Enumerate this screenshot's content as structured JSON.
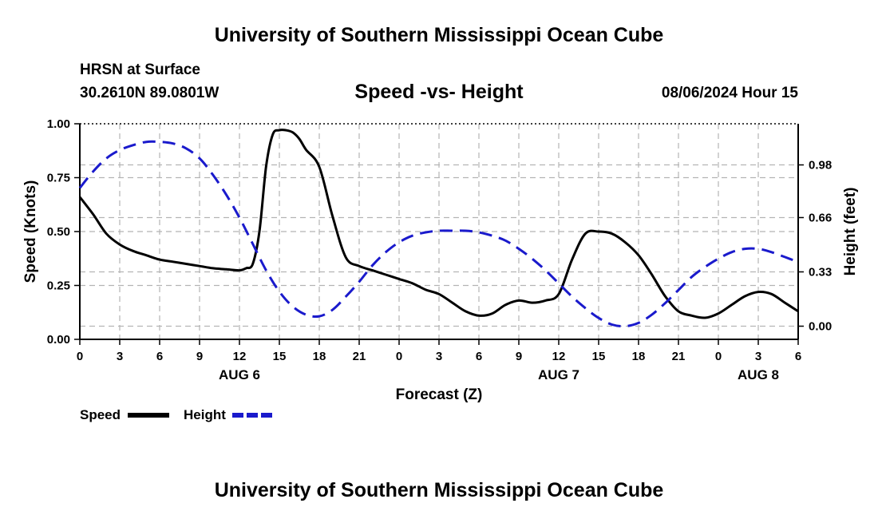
{
  "header": {
    "title": "University of Southern Mississippi Ocean Cube",
    "station": "HRSN at Surface",
    "coords": "30.2610N  89.0801W",
    "chart_title": "Speed -vs- Height",
    "timestamp": "08/06/2024 Hour 15"
  },
  "footer": {
    "title": "University of Southern Mississippi Ocean Cube"
  },
  "colors": {
    "speed": "#000000",
    "height": "#1a1acc",
    "grid": "#b4b4b4"
  },
  "chart_data": {
    "type": "line",
    "title": "Speed -vs- Height",
    "xlabel": "Forecast (Z)",
    "ylabel": "Speed (Knots)",
    "y2label": "Height (feet)",
    "x_unit": "forecast hours from 0Z Aug 6",
    "xlim": [
      0,
      54
    ],
    "ylim": [
      0,
      1.0
    ],
    "y2lim": [
      -0.08,
      1.23
    ],
    "x_ticks": [
      0,
      3,
      6,
      9,
      12,
      15,
      18,
      21,
      24,
      27,
      30,
      33,
      36,
      39,
      42,
      45,
      48,
      51,
      54
    ],
    "x_tick_labels": [
      "0",
      "3",
      "6",
      "9",
      "12",
      "15",
      "18",
      "21",
      "0",
      "3",
      "6",
      "9",
      "12",
      "15",
      "18",
      "21",
      "0",
      "3",
      "6"
    ],
    "y_ticks": [
      0.0,
      0.25,
      0.5,
      0.75,
      1.0
    ],
    "y_tick_labels": [
      "0.00",
      "0.25",
      "0.50",
      "0.75",
      "1.00"
    ],
    "y2_ticks": [
      0.0,
      0.33,
      0.66,
      0.98
    ],
    "y2_tick_labels": [
      "0.00",
      "0.33",
      "0.66",
      "0.98"
    ],
    "day_labels": [
      {
        "x": 12,
        "label": "AUG 6"
      },
      {
        "x": 36,
        "label": "AUG 7"
      },
      {
        "x": 51,
        "label": "AUG 8"
      }
    ],
    "series": [
      {
        "name": "Speed",
        "axis": "left",
        "style": "solid",
        "x": [
          0,
          1,
          2,
          3,
          4,
          5,
          6,
          7,
          8,
          9,
          10,
          11,
          12,
          12.5,
          13,
          13.5,
          14,
          14.5,
          15,
          15.5,
          16,
          16.5,
          17,
          18,
          19,
          20,
          21,
          22,
          23,
          24,
          25,
          26,
          27,
          28,
          29,
          30,
          31,
          32,
          33,
          34,
          35,
          36,
          37,
          38,
          39,
          40,
          41,
          42,
          43,
          44,
          45,
          46,
          47,
          48,
          49,
          50,
          51,
          52,
          53,
          54
        ],
        "values": [
          0.66,
          0.58,
          0.49,
          0.44,
          0.41,
          0.39,
          0.37,
          0.36,
          0.35,
          0.34,
          0.33,
          0.325,
          0.32,
          0.33,
          0.35,
          0.5,
          0.8,
          0.95,
          0.97,
          0.97,
          0.96,
          0.93,
          0.88,
          0.8,
          0.57,
          0.38,
          0.34,
          0.32,
          0.3,
          0.28,
          0.26,
          0.23,
          0.21,
          0.17,
          0.13,
          0.11,
          0.12,
          0.16,
          0.18,
          0.17,
          0.18,
          0.21,
          0.37,
          0.49,
          0.5,
          0.49,
          0.45,
          0.39,
          0.3,
          0.2,
          0.13,
          0.11,
          0.1,
          0.12,
          0.16,
          0.2,
          0.22,
          0.21,
          0.17,
          0.13
        ]
      },
      {
        "name": "Height",
        "axis": "right",
        "style": "dashed",
        "x": [
          0,
          1,
          2,
          3,
          4,
          5,
          6,
          7,
          8,
          9,
          10,
          11,
          12,
          13,
          14,
          15,
          16,
          17,
          18,
          19,
          20,
          21,
          22,
          23,
          24,
          25,
          26,
          27,
          28,
          29,
          30,
          31,
          32,
          33,
          34,
          35,
          36,
          37,
          38,
          39,
          40,
          41,
          42,
          43,
          44,
          45,
          46,
          47,
          48,
          49,
          50,
          51,
          52,
          53,
          54
        ],
        "values": [
          0.84,
          0.94,
          1.02,
          1.07,
          1.1,
          1.12,
          1.12,
          1.11,
          1.08,
          1.02,
          0.92,
          0.8,
          0.66,
          0.5,
          0.34,
          0.21,
          0.12,
          0.07,
          0.06,
          0.1,
          0.18,
          0.27,
          0.37,
          0.45,
          0.51,
          0.55,
          0.57,
          0.58,
          0.58,
          0.58,
          0.57,
          0.55,
          0.52,
          0.47,
          0.41,
          0.34,
          0.26,
          0.18,
          0.11,
          0.05,
          0.01,
          0.0,
          0.02,
          0.07,
          0.14,
          0.22,
          0.3,
          0.36,
          0.41,
          0.45,
          0.47,
          0.47,
          0.45,
          0.42,
          0.39
        ]
      }
    ],
    "legend": [
      "Speed",
      "Height"
    ],
    "legend_position": "bottom-left",
    "grid": true
  }
}
